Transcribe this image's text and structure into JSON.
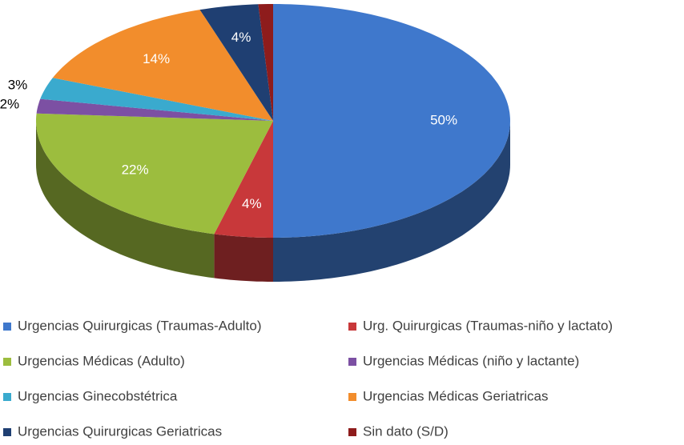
{
  "chart_data": {
    "type": "pie3d",
    "categories": [
      "Urgencias Quirurgicas (Traumas-Adulto)",
      "Urg. Quirurgicas (Traumas-niño y lactato)",
      "Urgencias Médicas (Adulto)",
      "Urgencias Médicas (niño y lactante)",
      "Urgencias Ginecobstétrica",
      "Urgencias Médicas Geriatricas",
      "Urgencias Quirurgicas Geriatricas",
      "Sin dato  (S/D)"
    ],
    "values": [
      50,
      4,
      22,
      2,
      3,
      14,
      4,
      1
    ],
    "value_labels": [
      "50%",
      "4%",
      "22%",
      "2%",
      "3%",
      "14%",
      "4%",
      null
    ],
    "colors": [
      "#3f78cc",
      "#c8383a",
      "#9cbd3e",
      "#7c50a3",
      "#3aaace",
      "#f28d2c",
      "#1f3f72",
      "#8e1c1c"
    ],
    "legend": "bottom"
  }
}
